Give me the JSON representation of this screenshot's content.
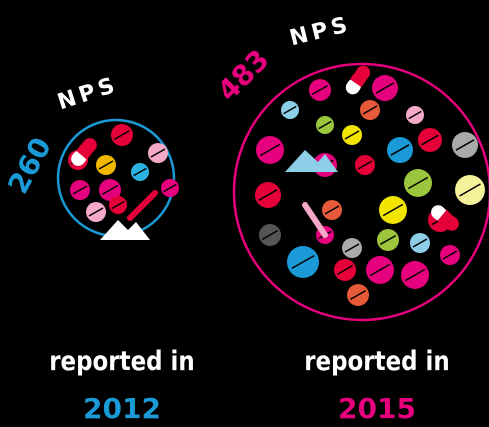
{
  "panels": [
    {
      "count": "260",
      "unit": "NPS",
      "caption": "reported in",
      "year": "2012"
    },
    {
      "count": "483",
      "unit": "NPS",
      "caption": "reported in",
      "year": "2015"
    }
  ]
}
